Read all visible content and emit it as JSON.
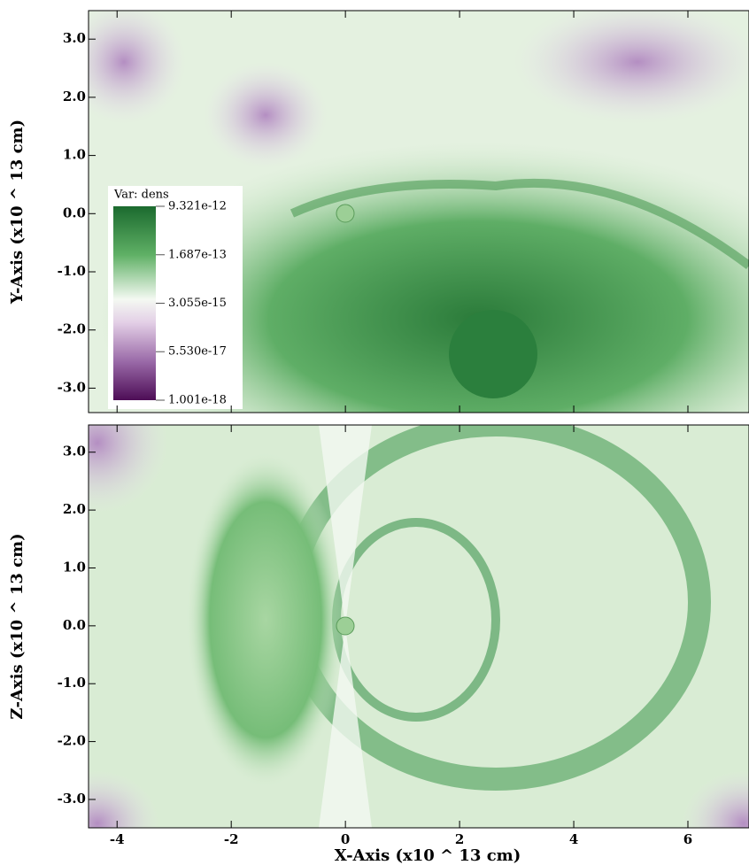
{
  "chart_data": [
    {
      "type": "heatmap",
      "ylabel": "Y-Axis (x10 ^ 13 cm)",
      "xlim": [
        -4.5,
        7.07
      ],
      "ylim": [
        -3.42,
        3.49
      ],
      "xticks": [
        -4,
        -2,
        0,
        2,
        4,
        6
      ],
      "xtick_labels": false,
      "yticks": [
        {
          "value": -3,
          "label": "-3.0"
        },
        {
          "value": -2,
          "label": "-2.0"
        },
        {
          "value": -1,
          "label": "-1.0"
        },
        {
          "value": 0,
          "label": "0.0"
        },
        {
          "value": 1,
          "label": "1.0"
        },
        {
          "value": 2,
          "label": "2.0"
        },
        {
          "value": 3,
          "label": "3.0"
        }
      ],
      "colorbar": {
        "title": "Var: dens",
        "log": true,
        "lim": [
          1.001e-18,
          9.321e-12
        ],
        "ticks": [
          9.321e-12,
          1.687e-13,
          3.055e-15,
          {
            "value": 5.53e-17,
            "label": "5.530e-17"
          },
          1.001e-18
        ]
      }
    },
    {
      "type": "heatmap",
      "ylabel": "Z-Axis (x10 ^ 13 cm)",
      "xlabel": "X-Axis (x10 ^ 13 cm)",
      "xlim": [
        -4.5,
        7.07
      ],
      "ylim": [
        -3.49,
        3.47
      ],
      "xticks": [
        -4,
        -2,
        0,
        2,
        4,
        6
      ],
      "xtick_labels": true,
      "yticks": [
        {
          "value": -3,
          "label": "-3.0"
        },
        {
          "value": -2,
          "label": "-2.0"
        },
        {
          "value": -1,
          "label": "-1.0"
        },
        {
          "value": 0,
          "label": "0.0"
        },
        {
          "value": 1,
          "label": "1.0"
        },
        {
          "value": 2,
          "label": "2.0"
        },
        {
          "value": 3,
          "label": "3.0"
        }
      ]
    }
  ]
}
